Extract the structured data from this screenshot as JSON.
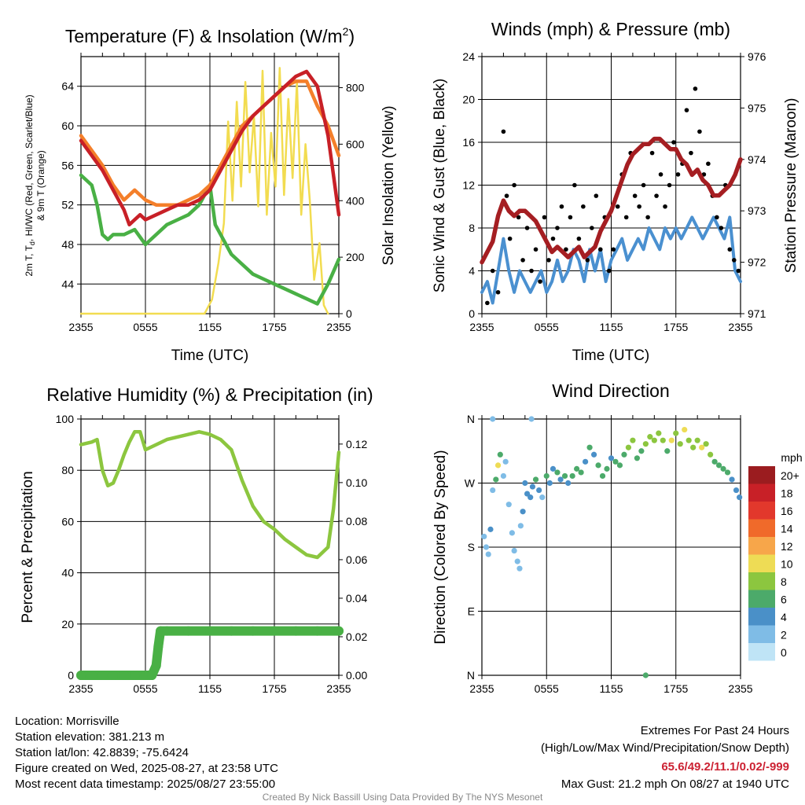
{
  "chart_data": [
    {
      "id": "temp",
      "type": "line",
      "title": "Temperature (F) & Insolation (W/m",
      "title_sup": "2",
      "title_close": ")",
      "xlabel": "Time (UTC)",
      "ylabel_left_lines": [
        "2m T, T",
        "d",
        ", HI/WC (Red, Green, Scarlet/Blue)",
        "& 9m T (Orange)"
      ],
      "ylabel_right": "Solar Insolation (Yellow)",
      "x_ticks": [
        "2355",
        "0555",
        "1155",
        "1755",
        "2355"
      ],
      "x_tick_hours": [
        0,
        6,
        12,
        18,
        24
      ],
      "x_range_hours": [
        0,
        24
      ],
      "y_left_ticks": [
        44,
        48,
        52,
        56,
        60,
        64
      ],
      "y_left_range": [
        41,
        67
      ],
      "y_right_ticks": [
        0,
        200,
        400,
        600,
        800
      ],
      "y_right_range": [
        0,
        910
      ],
      "grid": true,
      "series": [
        {
          "key": "insolation",
          "axis": "right",
          "color": "#f2dc50",
          "x": [
            0,
            2,
            4,
            6,
            8,
            10.5,
            11.5,
            12.2,
            12.8,
            13.3,
            13.7,
            14.1,
            14.5,
            14.9,
            15.3,
            15.7,
            16.1,
            16.5,
            16.9,
            17.3,
            17.7,
            18.1,
            18.5,
            18.9,
            19.3,
            19.7,
            20.1,
            20.5,
            20.9,
            21.3,
            21.7,
            22.2,
            22.6,
            23
          ],
          "y": [
            0,
            0,
            0,
            0,
            0,
            0,
            0,
            50,
            180,
            320,
            680,
            400,
            750,
            450,
            820,
            500,
            700,
            380,
            860,
            350,
            640,
            450,
            870,
            420,
            760,
            480,
            820,
            350,
            600,
            400,
            120,
            250,
            30,
            0
          ]
        },
        {
          "key": "dewpoint",
          "axis": "left",
          "color": "#49b045",
          "x": [
            0,
            1,
            1.5,
            2,
            2.5,
            3,
            4,
            5,
            6,
            7,
            8,
            9,
            10,
            11,
            11.5,
            12,
            12.5,
            13,
            14,
            15,
            16,
            17,
            18,
            19,
            20,
            21,
            22,
            23,
            24
          ],
          "y": [
            55,
            54,
            52,
            49,
            48.5,
            49,
            49,
            49.5,
            48,
            49,
            50,
            50.5,
            51,
            52,
            53,
            54,
            50,
            49,
            47,
            46,
            45,
            44.5,
            44,
            43.5,
            43,
            42.5,
            42,
            44,
            46.5
          ]
        },
        {
          "key": "temp9m",
          "axis": "left",
          "color": "#f47f2a",
          "x": [
            0,
            1,
            2,
            3,
            4,
            4.5,
            5,
            5.5,
            6,
            7,
            8,
            9,
            10,
            11,
            12,
            13,
            14,
            15,
            16,
            17,
            18,
            19,
            20,
            21,
            22,
            23,
            24
          ],
          "y": [
            59,
            57.5,
            56,
            54,
            52.5,
            53,
            53.5,
            53,
            52.5,
            52,
            52,
            52,
            52.5,
            53,
            54,
            56,
            58,
            60,
            61,
            62,
            63,
            64,
            64.5,
            64.5,
            62,
            60,
            57
          ]
        },
        {
          "key": "temp2m",
          "axis": "left",
          "color": "#c82027",
          "x": [
            0,
            1,
            2,
            3,
            4,
            4.5,
            5,
            5.5,
            6,
            7,
            8,
            9,
            10,
            11,
            12,
            13,
            14,
            15,
            16,
            17,
            18,
            19,
            20,
            21,
            22,
            23,
            23.5,
            24
          ],
          "y": [
            58.5,
            57,
            55.5,
            53.5,
            51.5,
            50,
            50.5,
            51,
            50.5,
            51,
            51.5,
            52,
            52,
            52.5,
            53.5,
            55.5,
            57.5,
            59.5,
            61,
            62,
            63,
            64,
            65,
            65.5,
            64,
            59,
            55,
            51
          ]
        }
      ]
    },
    {
      "id": "winds",
      "type": "line",
      "title": "Winds (mph) & Pressure (mb)",
      "xlabel": "Time (UTC)",
      "ylabel_left": "Sonic Wind & Gust (Blue, Black)",
      "ylabel_right": "Station Pressure (Maroon)",
      "x_ticks": [
        "2355",
        "0555",
        "1155",
        "1755",
        "2355"
      ],
      "x_tick_hours": [
        0,
        6,
        12,
        18,
        24
      ],
      "x_range_hours": [
        0,
        24
      ],
      "y_left_ticks": [
        0,
        4,
        8,
        12,
        16,
        20,
        24
      ],
      "y_left_range": [
        0,
        24
      ],
      "y_right_ticks": [
        971,
        972,
        973,
        974,
        975,
        976
      ],
      "y_right_range": [
        971,
        976
      ],
      "grid": true,
      "series": [
        {
          "key": "wind",
          "axis": "left",
          "color": "#4a90d0",
          "x": [
            0,
            0.5,
            1,
            1.5,
            2,
            2.5,
            3,
            3.5,
            4,
            4.5,
            5,
            5.5,
            6,
            6.5,
            7,
            7.5,
            8,
            8.5,
            9,
            9.5,
            10,
            10.5,
            11,
            11.5,
            12,
            12.5,
            13,
            13.5,
            14,
            14.5,
            15,
            15.5,
            16,
            16.5,
            17,
            17.5,
            18,
            18.5,
            19,
            19.5,
            20,
            20.5,
            21,
            21.5,
            22,
            22.5,
            23,
            23.5,
            24
          ],
          "y": [
            2,
            3,
            1,
            4,
            7,
            4,
            2,
            4,
            3,
            2,
            3,
            4,
            2,
            3,
            5,
            3,
            4,
            6,
            5,
            3,
            6,
            4,
            6,
            3,
            5,
            6,
            7,
            5,
            6,
            7,
            6,
            8,
            7,
            6,
            8,
            7,
            8,
            7,
            8,
            9,
            8,
            7,
            8,
            9,
            8,
            7,
            9,
            4,
            3
          ]
        },
        {
          "key": "pressure",
          "axis": "right",
          "color": "#a51e22",
          "x": [
            0,
            1,
            1.5,
            2,
            2.5,
            3,
            3.5,
            4,
            4.5,
            5,
            5.5,
            6,
            6.5,
            7,
            7.5,
            8,
            8.5,
            9,
            9.5,
            10,
            10.5,
            11,
            11.5,
            12,
            12.5,
            13,
            13.5,
            14,
            14.5,
            15,
            15.5,
            16,
            16.5,
            17,
            17.5,
            18,
            18.5,
            19,
            19.5,
            20,
            20.5,
            21,
            21.5,
            22,
            22.5,
            23,
            23.5,
            24
          ],
          "y": [
            972.0,
            972.4,
            972.9,
            973.2,
            973.0,
            972.9,
            973.0,
            973.0,
            972.9,
            972.8,
            972.6,
            972.4,
            972.2,
            972.3,
            972.2,
            972.1,
            972.2,
            972.3,
            972.1,
            972.2,
            972.3,
            972.6,
            972.8,
            973.0,
            973.3,
            973.6,
            973.9,
            974.1,
            974.2,
            974.3,
            974.3,
            974.4,
            974.4,
            974.3,
            974.2,
            974.2,
            974.0,
            973.9,
            973.7,
            973.8,
            973.6,
            973.5,
            973.3,
            973.3,
            973.4,
            973.5,
            973.7,
            974.0
          ]
        }
      ],
      "gusts": {
        "key": "gust",
        "axis": "left",
        "color": "#000000",
        "x": [
          0.5,
          1,
          1.5,
          2,
          2.3,
          2.6,
          3,
          3.4,
          3.8,
          4.2,
          4.6,
          5,
          5.4,
          5.8,
          6.2,
          6.6,
          7,
          7.4,
          7.8,
          8.2,
          8.6,
          9,
          9.4,
          9.8,
          10.2,
          10.6,
          11,
          11.4,
          11.8,
          12.2,
          12.6,
          13,
          13.4,
          13.8,
          14.2,
          14.6,
          15,
          15.4,
          15.8,
          16.2,
          16.6,
          17,
          17.4,
          17.8,
          18.2,
          18.6,
          19,
          19.4,
          19.8,
          20.2,
          20.6,
          21,
          21.4,
          21.8,
          22.2,
          22.6,
          23,
          23.4,
          23.8
        ],
        "y": [
          1,
          4,
          2,
          17,
          11,
          7,
          12,
          9,
          5,
          8,
          4,
          6,
          3,
          9,
          5,
          7,
          8,
          10,
          6,
          9,
          12,
          7,
          10,
          5,
          8,
          11,
          6,
          9,
          4,
          6,
          10,
          13,
          9,
          15,
          11,
          10,
          12,
          9,
          15,
          11,
          13,
          10,
          12,
          16,
          13,
          14,
          19,
          15,
          21,
          17,
          13,
          14,
          11,
          9,
          8,
          12,
          6,
          5,
          4
        ]
      }
    },
    {
      "id": "humidity",
      "type": "line",
      "title": "Relative Humidity (%) & Precipitation (in)",
      "ylabel_left": "Percent & Precipitation",
      "x_ticks": [
        "2355",
        "0555",
        "1155",
        "1755",
        "2355"
      ],
      "x_tick_hours": [
        0,
        6,
        12,
        18,
        24
      ],
      "x_range_hours": [
        0,
        24
      ],
      "y_left_ticks": [
        0,
        20,
        40,
        60,
        80,
        100
      ],
      "y_left_range": [
        0,
        100
      ],
      "y_right_ticks": [
        "0.00",
        "0.02",
        "0.04",
        "0.06",
        "0.08",
        "0.10",
        "0.12"
      ],
      "y_right_range": [
        0,
        0.133
      ],
      "grid": true,
      "series": [
        {
          "key": "rh",
          "axis": "left",
          "color": "#8cc63f",
          "x": [
            0,
            1,
            1.5,
            2,
            2.5,
            3,
            3.5,
            4,
            4.5,
            5,
            5.5,
            6,
            7,
            8,
            9,
            10,
            11,
            12,
            13,
            14,
            15,
            16,
            17,
            18,
            19,
            20,
            21,
            22,
            22.5,
            23,
            23.5,
            24
          ],
          "y": [
            90,
            91,
            92,
            80,
            74,
            75,
            80,
            86,
            91,
            95,
            95,
            88,
            90,
            92,
            93,
            94,
            95,
            94,
            92,
            88,
            76,
            66,
            60,
            57,
            53,
            50,
            47,
            46,
            48,
            50,
            65,
            87
          ]
        },
        {
          "key": "precip",
          "axis": "right",
          "color": "#49b045",
          "x": [
            0,
            1,
            2,
            3,
            4,
            5,
            6,
            6.6,
            7,
            7.2,
            7.4,
            8,
            10,
            12,
            14,
            16,
            18,
            20,
            22,
            24
          ],
          "y": [
            0,
            0,
            0,
            0,
            0,
            0,
            0,
            0,
            0.005,
            0.015,
            0.023,
            0.023,
            0.023,
            0.023,
            0.023,
            0.023,
            0.023,
            0.023,
            0.023,
            0.023
          ]
        }
      ]
    },
    {
      "id": "direction",
      "type": "scatter",
      "title": "Wind Direction",
      "ylabel_left": "Direction (Colored By Speed)",
      "x_ticks": [
        "2355",
        "0555",
        "1155",
        "1755",
        "2355"
      ],
      "x_tick_hours": [
        0,
        6,
        12,
        18,
        24
      ],
      "x_range_hours": [
        0,
        24
      ],
      "y_ticks": [
        "N",
        "E",
        "S",
        "W",
        "N"
      ],
      "y_tick_deg": [
        0,
        90,
        180,
        270,
        360
      ],
      "y_range_deg": [
        0,
        360
      ],
      "grid": true,
      "legend": {
        "title": "mph",
        "labels": [
          "20+",
          "18",
          "16",
          "14",
          "12",
          "10",
          "8",
          "6",
          "4",
          "2",
          "0"
        ],
        "colors": [
          "#9b1c1f",
          "#c82027",
          "#e2382c",
          "#f06a2a",
          "#f7a64a",
          "#eedc55",
          "#8cc63f",
          "#4caa6a",
          "#4a90c8",
          "#7fbce6",
          "#bfe4f6"
        ]
      },
      "points": {
        "x": [
          0.2,
          0.4,
          0.6,
          0.8,
          1.0,
          1.3,
          1.5,
          1.7,
          2.0,
          2.2,
          2.5,
          2.8,
          3.0,
          3.3,
          3.5,
          3.6,
          3.8,
          4.0,
          4.2,
          4.5,
          4.7,
          5.0,
          5.3,
          5.6,
          6.0,
          6.3,
          6.6,
          7.0,
          7.3,
          7.7,
          8.0,
          8.4,
          8.8,
          9.2,
          9.6,
          10.0,
          10.4,
          10.8,
          11.2,
          11.6,
          12.0,
          12.4,
          12.8,
          13.2,
          13.6,
          14.0,
          14.4,
          14.8,
          15.2,
          15.6,
          16.0,
          16.4,
          16.8,
          17.2,
          17.6,
          18.0,
          18.4,
          18.8,
          19.2,
          19.6,
          20.0,
          20.4,
          20.8,
          21.2,
          21.6,
          22.0,
          22.4,
          22.8,
          23.2,
          23.6,
          23.9,
          1.0,
          4.6,
          15.2
        ],
        "y": [
          195,
          180,
          170,
          205,
          260,
          275,
          295,
          310,
          280,
          300,
          240,
          200,
          175,
          160,
          150,
          210,
          230,
          270,
          255,
          250,
          265,
          275,
          260,
          250,
          280,
          270,
          290,
          285,
          275,
          280,
          270,
          280,
          290,
          285,
          300,
          320,
          310,
          295,
          280,
          290,
          305,
          300,
          295,
          310,
          320,
          330,
          305,
          315,
          325,
          335,
          330,
          340,
          330,
          315,
          330,
          340,
          325,
          345,
          330,
          320,
          330,
          320,
          325,
          310,
          300,
          295,
          290,
          285,
          275,
          260,
          250,
          360,
          360,
          0
        ],
        "s": [
          1,
          1,
          1,
          3,
          2,
          6,
          9,
          5,
          2,
          1,
          1,
          1,
          1,
          1,
          1,
          2,
          3,
          4,
          3,
          4,
          4,
          5,
          3,
          2,
          5,
          4,
          3,
          6,
          4,
          5,
          4,
          5,
          6,
          5,
          4,
          5,
          3,
          5,
          6,
          6,
          4,
          5,
          6,
          5,
          7,
          7,
          6,
          6,
          8,
          8,
          7,
          8,
          7,
          6,
          9,
          8,
          7,
          10,
          8,
          7,
          8,
          9,
          8,
          7,
          5,
          6,
          5,
          6,
          4,
          3,
          4,
          1,
          1,
          6
        ]
      }
    }
  ],
  "info": {
    "location": "Location: Morrisville",
    "elevation": "Station elevation: 381.213 m",
    "latlon": "Station lat/lon: 42.8839; -75.6424",
    "created": "Figure created on Wed, 2025-08-27, at 23:58 UTC",
    "recent": "Most recent data timestamp: 2025/08/27 23:55:00"
  },
  "extremes": {
    "heading": "Extremes For Past 24 Hours",
    "subheading": "(High/Low/Max Wind/Precipitation/Snow Depth)",
    "values": "65.6/49.2/11.1/0.02/-999",
    "max_gust": "Max Gust: 21.2 mph On 08/27 at 1940 UTC"
  },
  "credit": "Created By Nick Bassill Using Data Provided By The NYS Mesonet"
}
